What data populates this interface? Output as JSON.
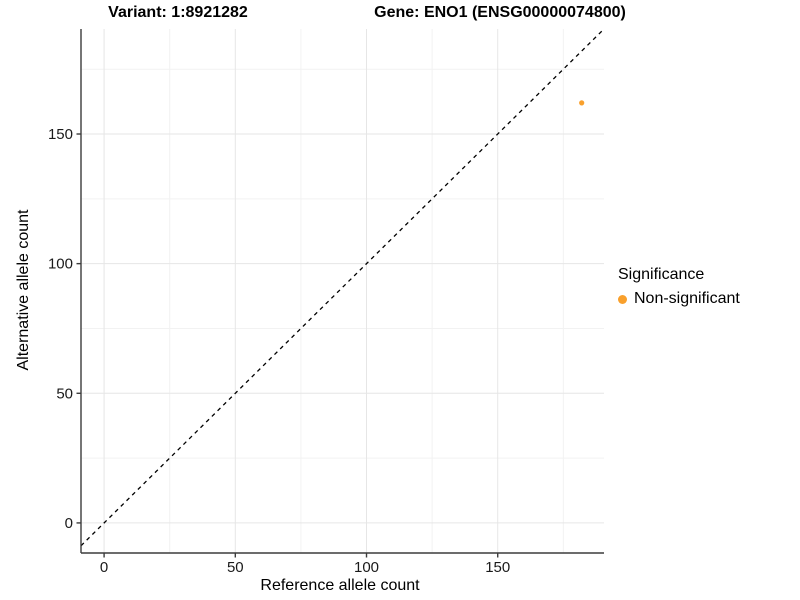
{
  "titles": {
    "variant": "Variant: 1:8921282",
    "gene": "Gene: ENO1 (ENSG00000074800)"
  },
  "chart_data": {
    "type": "scatter",
    "xlabel": "Reference allele count",
    "ylabel": "Alternative allele count",
    "xlim": [
      -8.8,
      190.5
    ],
    "ylim": [
      -11.6,
      190.5
    ],
    "xticks": [
      0,
      50,
      100,
      150
    ],
    "yticks": [
      0,
      50,
      100,
      150
    ],
    "xminor": [
      25,
      75,
      125,
      175
    ],
    "yminor": [
      25,
      75,
      125,
      175
    ],
    "grid": true,
    "legend_position": "right",
    "identity_line": {
      "type": "abline",
      "slope": 1,
      "intercept": 0,
      "style": "dashed",
      "color": "#000000"
    },
    "series": [
      {
        "name": "Non-significant",
        "color": "#F9A02C",
        "points": [
          {
            "x": 182,
            "y": 162
          }
        ]
      }
    ],
    "legend": {
      "title": "Significance",
      "entries": [
        {
          "label": "Non-significant",
          "color": "#F9A02C"
        }
      ]
    }
  },
  "style_colors": {
    "axis_line": "#3c3c3c",
    "tick_mark": "#3c3c3c",
    "tick_label": "#1a1a1a",
    "grid_major": "#e6e6e6",
    "grid_minor": "#f2f2f2",
    "panel_background": "#ffffff"
  }
}
